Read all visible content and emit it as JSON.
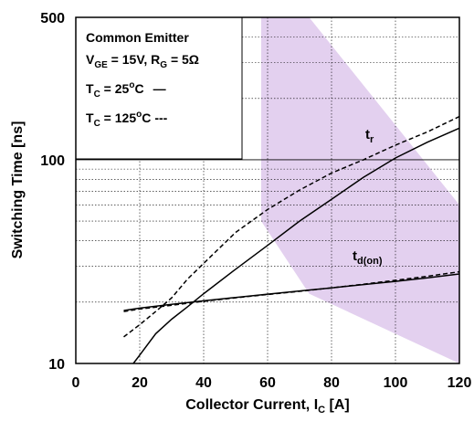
{
  "chart_data": {
    "type": "line",
    "title": "",
    "xlabel": "Collector Current, I",
    "xlabel_sub": "C",
    "xlabel_unit": " [A]",
    "ylabel": "Switching Time [ns]",
    "xlim": [
      0,
      120
    ],
    "ylim": [
      10,
      500
    ],
    "yscale": "log",
    "grid": true,
    "x_ticks": [
      "0",
      "20",
      "40",
      "60",
      "80",
      "100",
      "120"
    ],
    "y_ticks": [
      "10",
      "100",
      "500"
    ],
    "legend": {
      "placement": "top-left",
      "title": "Common Emitter",
      "cond1_a": "V",
      "cond1_a_sub": "GE",
      "cond1_b": " = 15V, R",
      "cond1_b_sub": "G",
      "cond1_c": " = 5Ω",
      "tc25_a": "T",
      "tc25_sub": "C",
      "tc25_b": " = 25",
      "tc25_sup": "o",
      "tc25_c": "C",
      "tc25_line": "—",
      "tc125_a": "T",
      "tc125_sub": "C",
      "tc125_b": " = 125",
      "tc125_sup": "o",
      "tc125_c": "C",
      "tc125_line": "---"
    },
    "labels": {
      "tr_main": "t",
      "tr_sub": "r",
      "tdon_main": "t",
      "tdon_sub": "d(on)"
    },
    "shaded_band_color": "#e3d0ef",
    "series": [
      {
        "name": "t_r 25°C",
        "style": "solid",
        "x": [
          18,
          20,
          25,
          30,
          35,
          40,
          50,
          60,
          70,
          80,
          90,
          100,
          110,
          120
        ],
        "y": [
          10,
          11,
          14,
          16.5,
          19,
          22,
          29,
          38,
          50,
          64,
          82,
          102,
          122,
          143
        ]
      },
      {
        "name": "t_r 125°C",
        "style": "dashed",
        "x": [
          15,
          20,
          25,
          30,
          35,
          40,
          50,
          60,
          70,
          80,
          90,
          100,
          110,
          120
        ],
        "y": [
          13.5,
          15.5,
          18,
          21,
          26,
          31,
          44,
          57,
          71,
          86,
          100,
          118,
          137,
          163
        ]
      },
      {
        "name": "t_d(on) 25°C",
        "style": "solid",
        "x": [
          15,
          20,
          30,
          40,
          50,
          60,
          70,
          80,
          90,
          100,
          110,
          120
        ],
        "y": [
          18.2,
          18.7,
          19.5,
          20.3,
          21.1,
          21.9,
          22.7,
          23.5,
          24.4,
          25.3,
          26.3,
          27.5
        ]
      },
      {
        "name": "t_d(on) 125°C",
        "style": "dashed",
        "x": [
          15,
          20,
          30,
          40,
          50,
          60,
          70,
          80,
          90,
          100,
          110,
          120
        ],
        "y": [
          18.0,
          18.5,
          19.3,
          20.2,
          21.0,
          21.8,
          22.6,
          23.5,
          24.5,
          25.6,
          26.8,
          28.2
        ]
      }
    ]
  }
}
